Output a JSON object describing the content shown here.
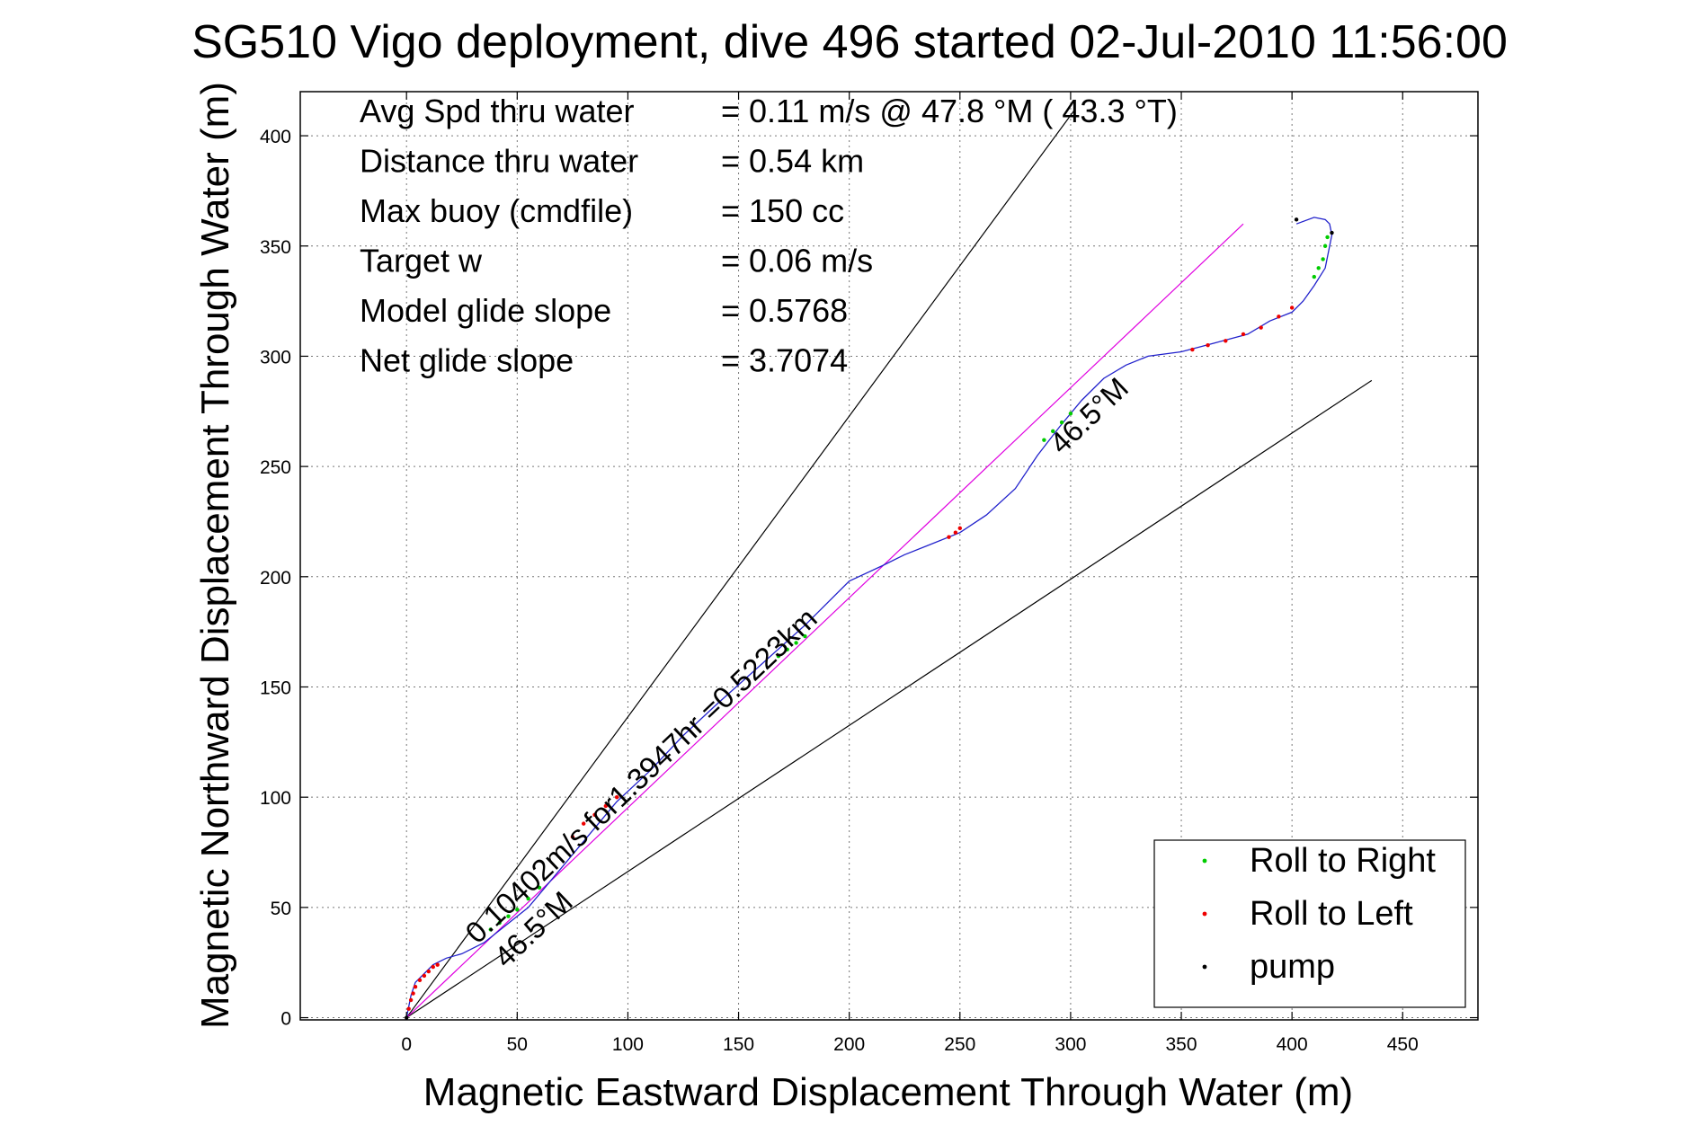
{
  "chart_data": {
    "type": "line",
    "title": "SG510 Vigo deployment, dive 496 started 02-Jul-2010 11:56:00",
    "xlabel": "Magnetic Eastward Displacement Through Water (m)",
    "ylabel": "Magnetic Northward Displacement Through Water (m)",
    "xlim": [
      -48,
      484
    ],
    "ylim": [
      -1,
      420
    ],
    "xticks": [
      0,
      50,
      100,
      150,
      200,
      250,
      300,
      350,
      400,
      450
    ],
    "yticks": [
      0,
      50,
      100,
      150,
      200,
      250,
      300,
      350,
      400
    ],
    "grid": true,
    "legend_position": "bottom-right",
    "info_rows": [
      {
        "label": "Avg Spd thru water",
        "value": "=  0.11 m/s @  47.8 °M ( 43.3 °T)"
      },
      {
        "label": "Distance thru water",
        "value": "=  0.54 km"
      },
      {
        "label": "Max buoy (cmdfile)",
        "value": "= 150 cc"
      },
      {
        "label": "Target w",
        "value": "= 0.06 m/s"
      },
      {
        "label": "Model glide slope",
        "value": "= 0.5768"
      },
      {
        "label": "Net glide slope",
        "value": "= 3.7074"
      }
    ],
    "annotations": [
      {
        "text": "0.10402m/s for1.3947hr =0.5223km",
        "x": 32,
        "y": 33,
        "angle_deg": 43.5
      },
      {
        "text": "46.5°M",
        "x": 45,
        "y": 22,
        "angle_deg": 43.5
      },
      {
        "text": "46.5°M",
        "x": 296,
        "y": 255,
        "angle_deg": 43.5
      }
    ],
    "reference_lines": [
      {
        "name": "upper-bound",
        "color": "#000000",
        "x": [
          0,
          302
        ],
        "y": [
          0,
          412
        ]
      },
      {
        "name": "lower-bound",
        "color": "#000000",
        "x": [
          0,
          436
        ],
        "y": [
          0,
          289
        ]
      },
      {
        "name": "target-course",
        "color": "#e000e0",
        "x": [
          0,
          378
        ],
        "y": [
          0,
          360
        ]
      }
    ],
    "track": {
      "color": "#2222cc",
      "x": [
        0,
        2,
        4,
        8,
        12,
        18,
        25,
        35,
        45,
        55,
        65,
        80,
        95,
        110,
        125,
        140,
        160,
        180,
        200,
        215,
        225,
        235,
        250,
        262,
        275,
        285,
        295,
        305,
        315,
        325,
        335,
        350,
        365,
        380,
        390,
        400,
        405,
        410,
        415,
        418,
        417,
        415,
        410,
        402
      ],
      "y": [
        0,
        10,
        16,
        20,
        24,
        27,
        29,
        34,
        42,
        50,
        62,
        80,
        98,
        112,
        128,
        142,
        160,
        178,
        198,
        205,
        210,
        214,
        220,
        228,
        240,
        255,
        268,
        280,
        290,
        296,
        300,
        302,
        306,
        310,
        316,
        320,
        325,
        332,
        340,
        355,
        360,
        362,
        363,
        360
      ]
    },
    "series": [
      {
        "name": "Roll to Right",
        "color": "#00cc00",
        "x": [
          38,
          42,
          46,
          50,
          55,
          60,
          168,
          172,
          176,
          180,
          288,
          292,
          296,
          300,
          410,
          412,
          414,
          415,
          416
        ],
        "y": [
          40,
          43,
          46,
          49,
          54,
          59,
          164,
          167,
          170,
          173,
          262,
          266,
          270,
          274,
          336,
          340,
          344,
          350,
          354
        ]
      },
      {
        "name": "Roll to Left",
        "color": "#ee0000",
        "x": [
          1,
          2,
          3,
          4,
          6,
          8,
          10,
          12,
          14,
          75,
          80,
          85,
          90,
          95,
          245,
          248,
          250,
          355,
          362,
          370,
          378,
          386,
          394,
          400
        ],
        "y": [
          4,
          8,
          11,
          14,
          17,
          19,
          21,
          23,
          24,
          82,
          88,
          92,
          96,
          100,
          218,
          220,
          222,
          303,
          305,
          307,
          310,
          313,
          318,
          322
        ]
      },
      {
        "name": "pump",
        "color": "#000000",
        "x": [
          0,
          418,
          402
        ],
        "y": [
          0,
          356,
          362
        ]
      }
    ]
  }
}
